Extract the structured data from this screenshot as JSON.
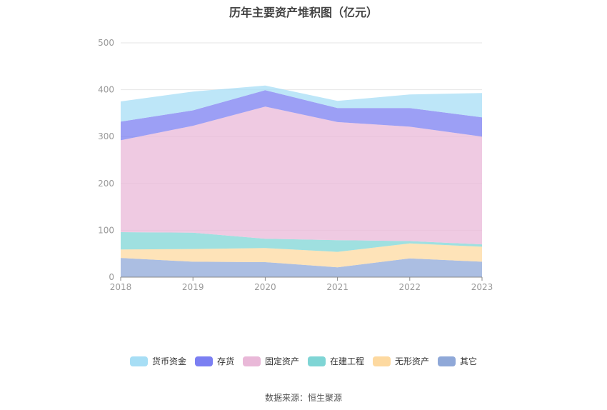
{
  "chart_data": {
    "type": "area",
    "title": "历年主要资产堆积图（亿元）",
    "categories": [
      "2018",
      "2019",
      "2020",
      "2021",
      "2022",
      "2023"
    ],
    "ylim": [
      0,
      500
    ],
    "yticks": [
      0,
      100,
      200,
      300,
      400,
      500
    ],
    "stacked": true,
    "grid": true,
    "legend_position": "bottom",
    "series": [
      {
        "name": "其它",
        "color": "#8fa8d8",
        "values": [
          41,
          33,
          32,
          21,
          40,
          33
        ]
      },
      {
        "name": "无形资产",
        "color": "#fdd9a0",
        "values": [
          18,
          27,
          30,
          33,
          32,
          32
        ]
      },
      {
        "name": "在建工程",
        "color": "#7fd5d5",
        "values": [
          37,
          35,
          20,
          25,
          5,
          5
        ]
      },
      {
        "name": "固定资产",
        "color": "#e9b8d8",
        "values": [
          196,
          228,
          282,
          252,
          244,
          230
        ]
      },
      {
        "name": "存货",
        "color": "#7b7ff2",
        "values": [
          40,
          33,
          35,
          30,
          40,
          41
        ]
      },
      {
        "name": "货币资金",
        "color": "#a7def5",
        "values": [
          43,
          40,
          10,
          15,
          29,
          52
        ]
      }
    ],
    "legend_order": [
      "货币资金",
      "存货",
      "固定资产",
      "在建工程",
      "无形资产",
      "其它"
    ]
  },
  "source": "数据来源：恒生聚源"
}
